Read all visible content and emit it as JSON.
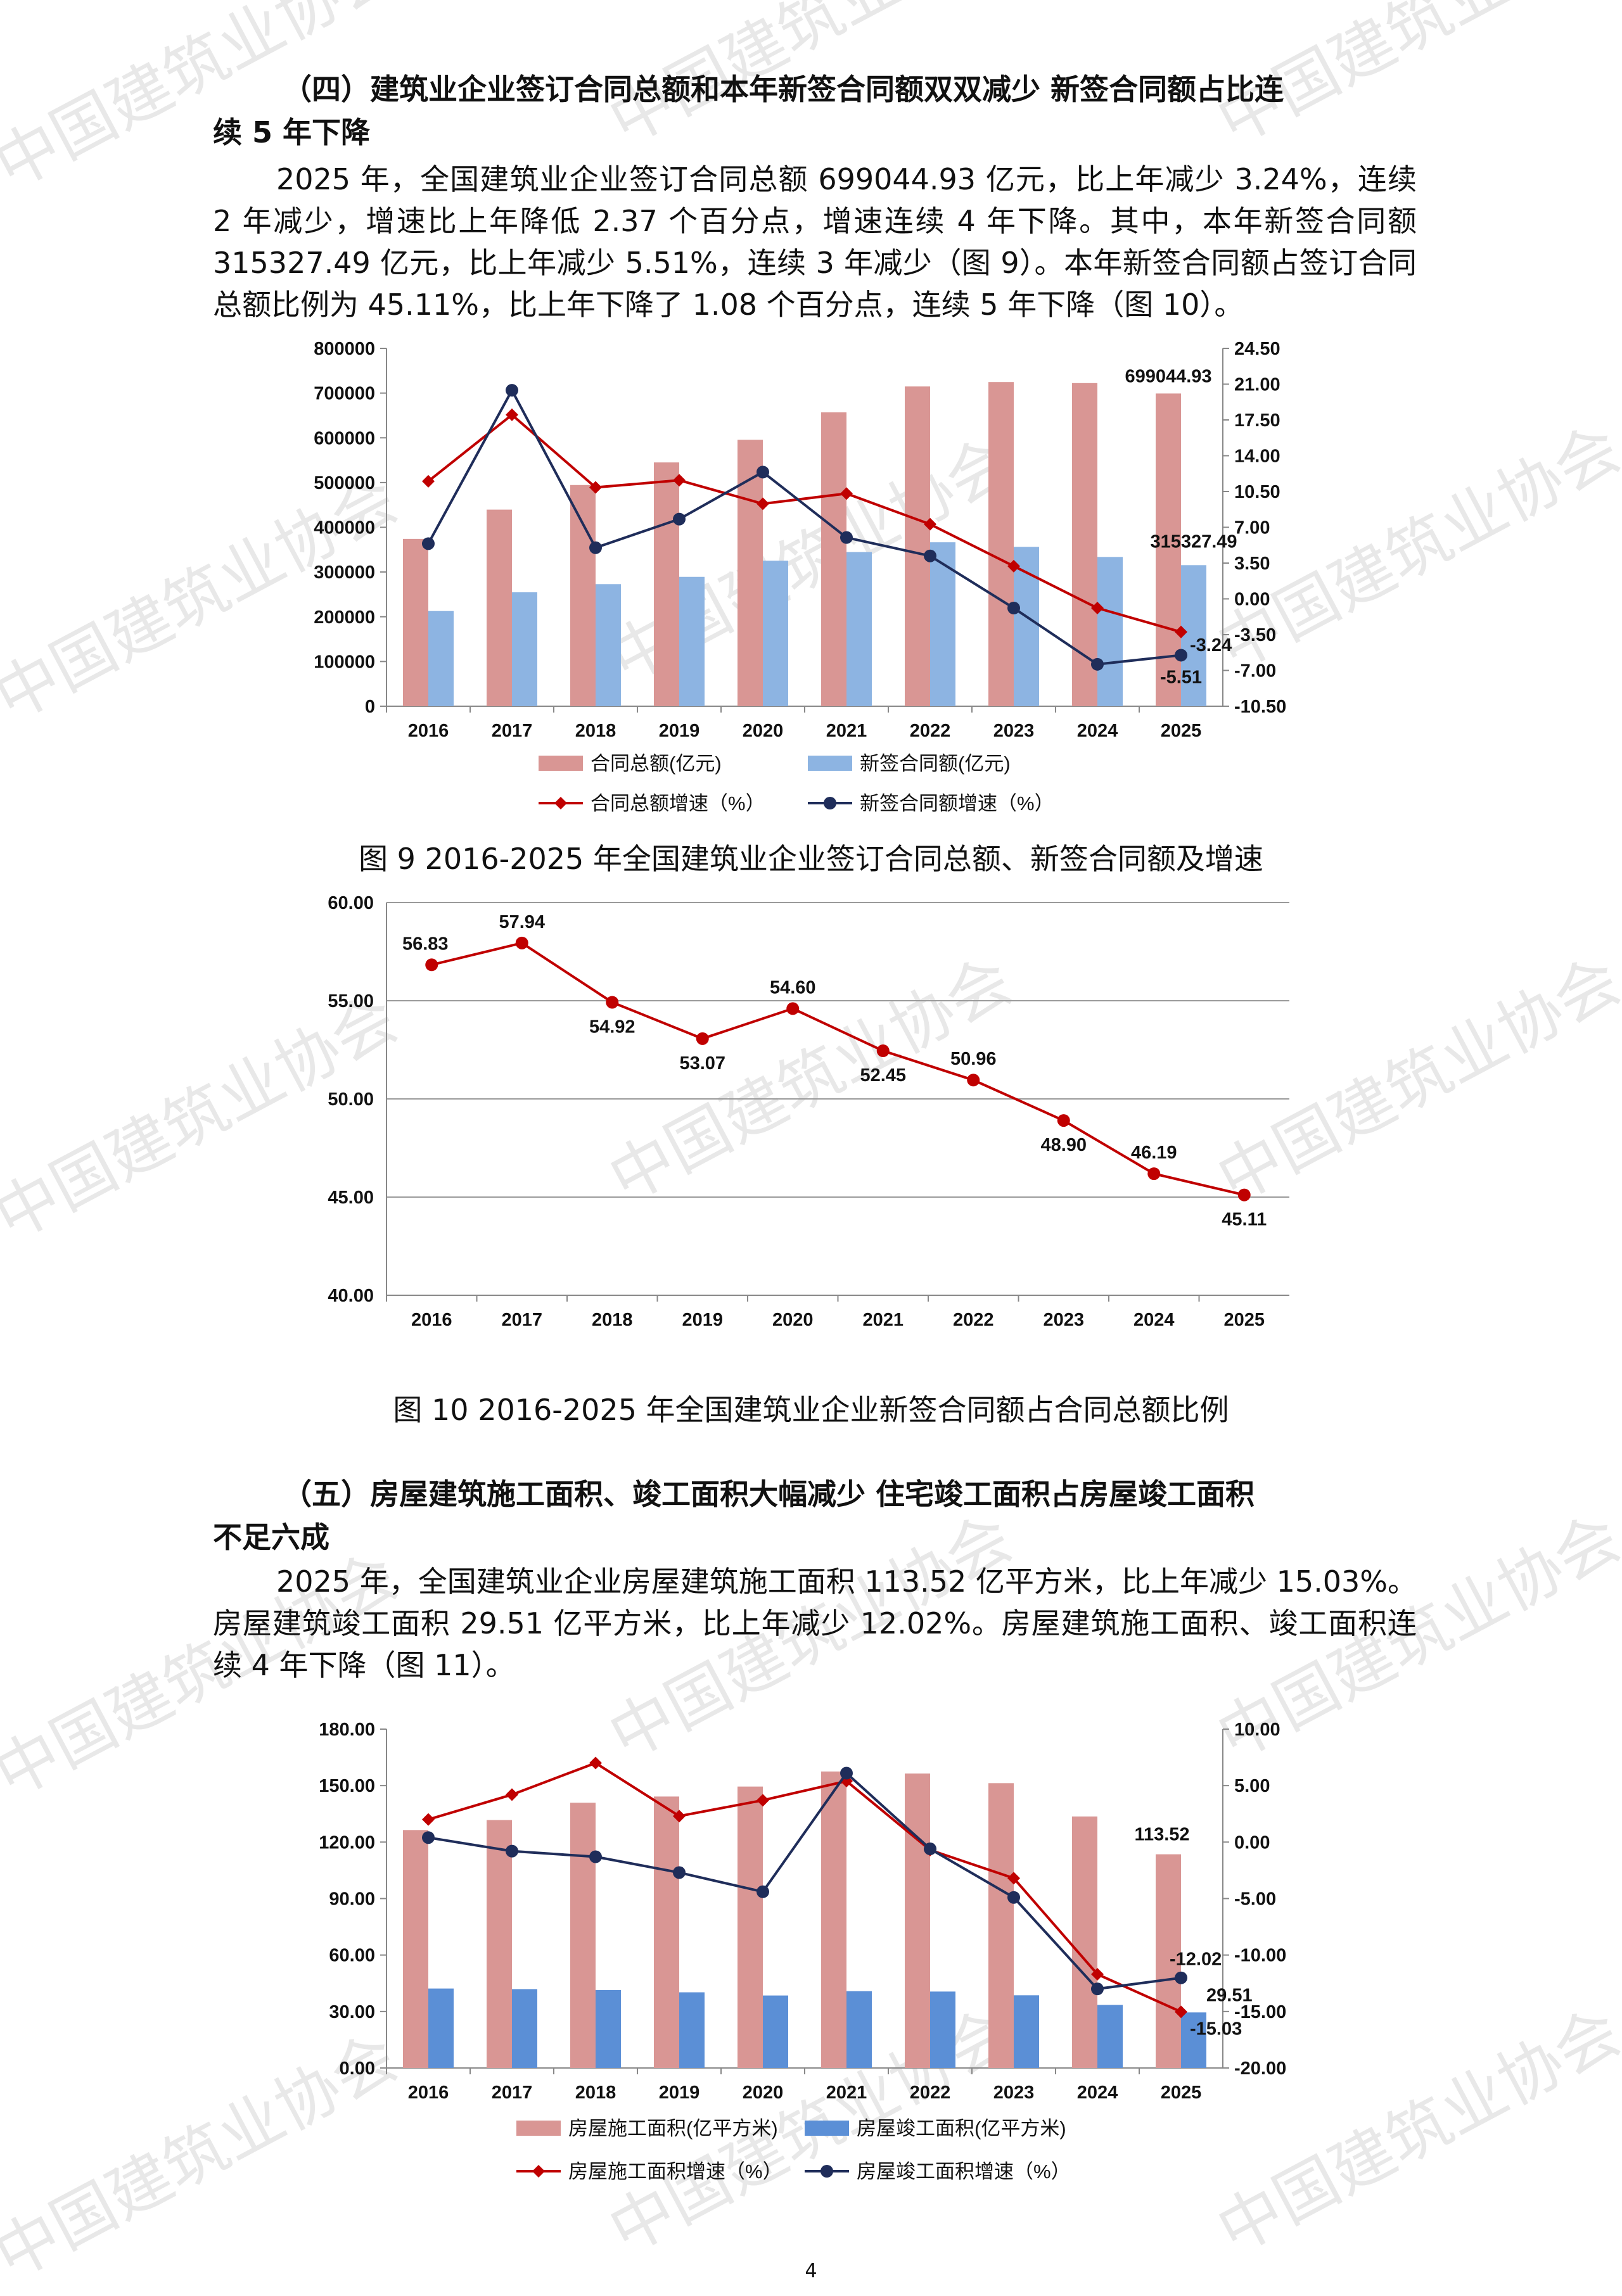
{
  "watermark": "中国建筑业协会",
  "page_number": "4",
  "section4": {
    "heading_line1": "（四）建筑业企业签订合同总额和本年新签合同额双双减少  新签合同额占比连",
    "heading_line2": "续 5 年下降",
    "paragraph": "2025 年，全国建筑业企业签订合同总额 699044.93 亿元，比上年减少 3.24%，连续 2 年减少，增速比上年降低 2.37 个百分点，增速连续 4 年下降。其中，本年新签合同额 315327.49 亿元，比上年减少 5.51%，连续 3 年减少（图 9）。本年新签合同额占签订合同总额比例为 45.11%，比上年下降了 1.08 个百分点，连续 5 年下降（图 10）。"
  },
  "figure9_caption": "图 9  2016-2025 年全国建筑业企业签订合同总额、新签合同额及增速",
  "figure10_caption": "图 10  2016-2025 年全国建筑业企业新签合同额占合同总额比例",
  "section5": {
    "heading_line1": "（五）房屋建筑施工面积、竣工面积大幅减少   住宅竣工面积占房屋竣工面积",
    "heading_line2": "不足六成",
    "paragraph": "2025 年，全国建筑业企业房屋建筑施工面积 113.52 亿平方米，比上年减少 15.03%。房屋建筑竣工面积 29.51 亿平方米，比上年减少 12.02%。房屋建筑施工面积、竣工面积连续 4 年下降（图 11）。"
  },
  "chart_data": [
    {
      "id": "fig9",
      "type": "bar",
      "categories": [
        "2016",
        "2017",
        "2018",
        "2019",
        "2020",
        "2021",
        "2022",
        "2023",
        "2024",
        "2025"
      ],
      "left_axis": {
        "min": 0,
        "max": 800000,
        "step": 100000,
        "tick_labels": [
          "0",
          "100000",
          "200000",
          "300000",
          "400000",
          "500000",
          "600000",
          "700000",
          "800000"
        ]
      },
      "right_axis": {
        "min": -10.5,
        "max": 24.5,
        "step": 3.5,
        "tick_labels": [
          "-10.50",
          "-7.00",
          "-3.50",
          "0.00",
          "3.50",
          "7.00",
          "10.50",
          "14.00",
          "17.50",
          "21.00",
          "24.50"
        ]
      },
      "series": [
        {
          "name": "合同总额(亿元)",
          "kind": "bar",
          "axis": "left",
          "color": "#d99694",
          "values": [
            374000,
            439500,
            494500,
            545000,
            595500,
            656900,
            714800,
            724700,
            722400,
            699044.93
          ]
        },
        {
          "name": "新签合同额(亿元)",
          "kind": "bar",
          "axis": "left",
          "color": "#8db4e2",
          "values": [
            212800,
            254700,
            272900,
            289200,
            325200,
            344600,
            366500,
            356100,
            333700,
            315327.49
          ]
        },
        {
          "name": "合同总额增速（%）",
          "kind": "line",
          "axis": "right",
          "color": "#c00000",
          "marker": "diamond",
          "values": [
            11.5,
            18.0,
            10.9,
            11.6,
            9.3,
            10.3,
            7.3,
            3.2,
            -0.9,
            -3.24
          ]
        },
        {
          "name": "新签合同额增速（%）",
          "kind": "line",
          "axis": "right",
          "color": "#1f2d5a",
          "marker": "circle",
          "values": [
            5.4,
            20.4,
            5.0,
            7.8,
            12.4,
            6.0,
            4.2,
            -0.9,
            -6.4,
            -5.51
          ]
        }
      ],
      "data_labels": [
        {
          "text": "699044.93",
          "series": 0,
          "index": 9
        },
        {
          "text": "315327.49",
          "series": 1,
          "index": 9
        },
        {
          "text": "-3.24",
          "series": 2,
          "index": 9
        },
        {
          "text": "-5.51",
          "series": 3,
          "index": 9
        }
      ],
      "legend_position": "bottom"
    },
    {
      "id": "fig10",
      "type": "line",
      "categories": [
        "2016",
        "2017",
        "2018",
        "2019",
        "2020",
        "2021",
        "2022",
        "2023",
        "2024",
        "2025"
      ],
      "y_axis": {
        "min": 40,
        "max": 60,
        "step": 5,
        "tick_labels": [
          "40.00",
          "45.00",
          "50.00",
          "55.00",
          "60.00"
        ]
      },
      "series": [
        {
          "kind": "line",
          "color": "#c00000",
          "marker": "circle",
          "values": [
            56.83,
            57.94,
            54.92,
            53.07,
            54.6,
            52.45,
            50.96,
            48.9,
            46.19,
            45.11
          ],
          "labels": [
            "56.83",
            "57.94",
            "54.92",
            "53.07",
            "54.60",
            "52.45",
            "50.96",
            "48.90",
            "46.19",
            "45.11"
          ]
        }
      ],
      "grid": true
    },
    {
      "id": "fig11",
      "type": "bar",
      "categories": [
        "2016",
        "2017",
        "2018",
        "2019",
        "2020",
        "2021",
        "2022",
        "2023",
        "2024",
        "2025"
      ],
      "left_axis": {
        "min": 0,
        "max": 180,
        "step": 30,
        "tick_labels": [
          "0.00",
          "30.00",
          "60.00",
          "90.00",
          "120.00",
          "150.00",
          "180.00"
        ]
      },
      "right_axis": {
        "min": -20,
        "max": 10,
        "step": 5,
        "tick_labels": [
          "-20.00",
          "-15.00",
          "-10.00",
          "-5.00",
          "0.00",
          "5.00",
          "10.00"
        ]
      },
      "series": [
        {
          "name": "房屋施工面积(亿平方米)",
          "kind": "bar",
          "axis": "left",
          "color": "#d99694",
          "values": [
            126.4,
            131.7,
            140.9,
            144.2,
            149.5,
            157.5,
            156.4,
            151.3,
            133.6,
            113.52
          ]
        },
        {
          "name": "房屋竣工面积(亿平方米)",
          "kind": "bar",
          "axis": "left",
          "color": "#5b8fd6",
          "values": [
            42.2,
            41.9,
            41.4,
            40.2,
            38.5,
            40.8,
            40.6,
            38.6,
            33.5,
            29.51
          ]
        },
        {
          "name": "房屋施工面积增速（%）",
          "kind": "line",
          "axis": "right",
          "color": "#c00000",
          "marker": "diamond",
          "values": [
            2.0,
            4.2,
            7.0,
            2.3,
            3.7,
            5.4,
            -0.7,
            -3.2,
            -11.7,
            -15.03
          ]
        },
        {
          "name": "房屋竣工面积增速（%）",
          "kind": "line",
          "axis": "right",
          "color": "#1f2d5a",
          "marker": "circle",
          "values": [
            0.4,
            -0.8,
            -1.3,
            -2.7,
            -4.4,
            6.1,
            -0.6,
            -4.9,
            -13.0,
            -12.02
          ]
        }
      ],
      "data_labels": [
        {
          "text": "113.52",
          "series": 0,
          "index": 9
        },
        {
          "text": "29.51",
          "series": 1,
          "index": 9
        },
        {
          "text": "-12.02",
          "series": 3,
          "index": 9
        },
        {
          "text": "-15.03",
          "series": 2,
          "index": 9
        }
      ],
      "legend_position": "bottom"
    }
  ]
}
